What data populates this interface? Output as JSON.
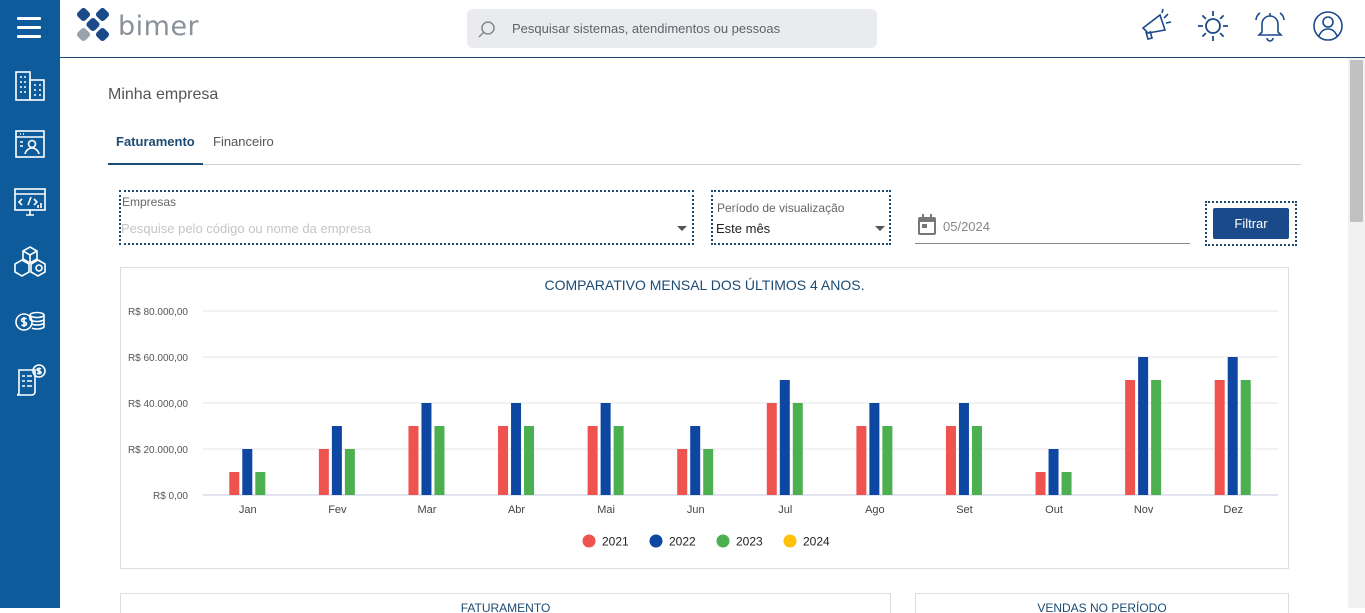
{
  "app": {
    "logo_text": "bimer"
  },
  "sidebar": {
    "items": [
      {
        "icon": "building-icon"
      },
      {
        "icon": "contact-card-icon"
      },
      {
        "icon": "code-monitor-icon"
      },
      {
        "icon": "boxes-icon"
      },
      {
        "icon": "coins-icon"
      },
      {
        "icon": "invoice-icon"
      }
    ]
  },
  "header": {
    "search_placeholder": "Pesquisar sistemas, atendimentos ou pessoas",
    "icons": [
      "megaphone-icon",
      "sun-icon",
      "bell-icon",
      "user-icon"
    ]
  },
  "page": {
    "title": "Minha empresa",
    "tabs": [
      {
        "label": "Faturamento",
        "active": true
      },
      {
        "label": "Financeiro",
        "active": false
      }
    ]
  },
  "filters": {
    "empresas_label": "Empresas",
    "empresas_placeholder": "Pesquise pelo código ou nome da empresa",
    "periodo_label": "Período de visualização",
    "periodo_value": "Este mês",
    "date_value": "05/2024",
    "filter_button": "Filtrar"
  },
  "chart_data": {
    "type": "bar",
    "title": "COMPARATIVO MENSAL DOS ÚLTIMOS 4 ANOS.",
    "categories": [
      "Jan",
      "Fev",
      "Mar",
      "Abr",
      "Mai",
      "Jun",
      "Jul",
      "Ago",
      "Set",
      "Out",
      "Nov",
      "Dez"
    ],
    "series": [
      {
        "name": "2021",
        "color": "#ef5350",
        "values": [
          10000,
          20000,
          30000,
          30000,
          30000,
          20000,
          40000,
          30000,
          30000,
          10000,
          50000,
          50000
        ]
      },
      {
        "name": "2022",
        "color": "#0d47a1",
        "values": [
          20000,
          30000,
          40000,
          40000,
          40000,
          30000,
          50000,
          40000,
          40000,
          20000,
          60000,
          60000
        ]
      },
      {
        "name": "2023",
        "color": "#4caf50",
        "values": [
          10000,
          20000,
          30000,
          30000,
          30000,
          20000,
          40000,
          30000,
          30000,
          10000,
          50000,
          50000
        ]
      },
      {
        "name": "2024",
        "color": "#ffc107",
        "values": [
          0,
          0,
          0,
          0,
          0,
          0,
          0,
          0,
          0,
          0,
          0,
          0
        ]
      }
    ],
    "yticks": [
      "R$ 0,00",
      "R$ 20.000,00",
      "R$ 40.000,00",
      "R$ 60.000,00",
      "R$ 80.000,00"
    ],
    "ylim": [
      0,
      80000
    ],
    "grid": true,
    "legend_position": "bottom"
  },
  "bottom_cards": {
    "faturamento_title": "FATURAMENTO",
    "vendas_title": "VENDAS NO PERÍODO"
  }
}
